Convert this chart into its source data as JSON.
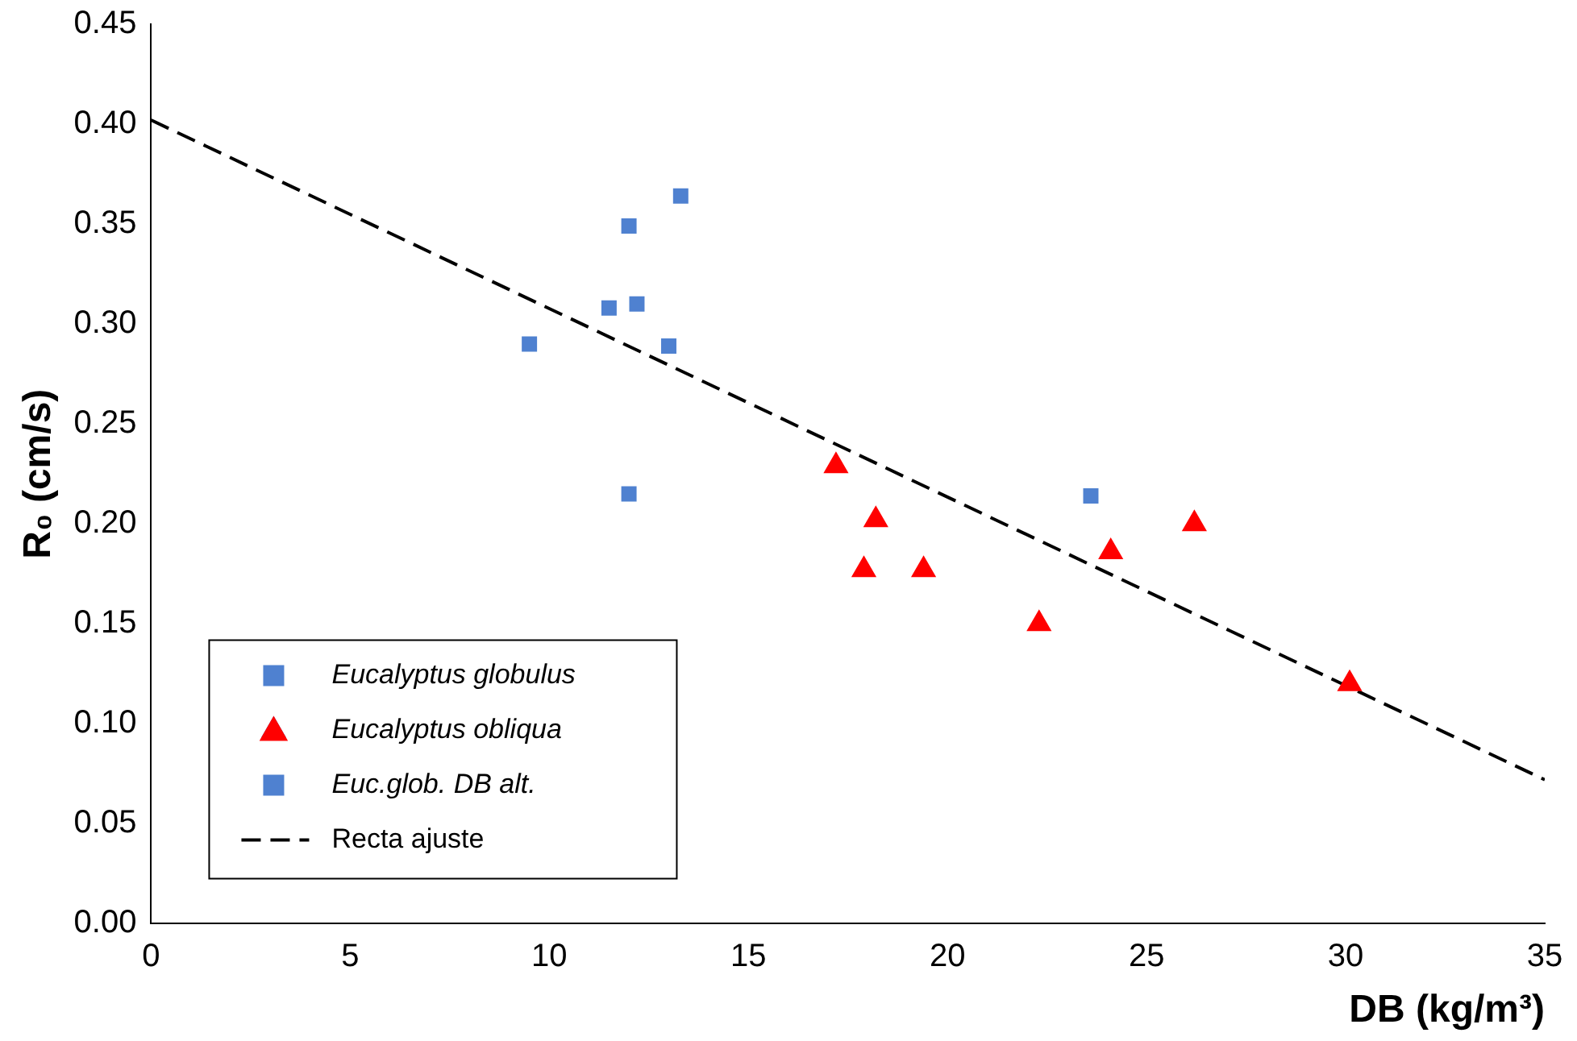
{
  "chart_data": {
    "type": "scatter",
    "xlabel": "DB (kg/m³)",
    "ylabel": "R₀ (cm/s)",
    "xlim": [
      0,
      35
    ],
    "xticks": [
      0,
      5,
      10,
      15,
      20,
      25,
      30,
      35
    ],
    "ylim": [
      0,
      0.45
    ],
    "yticks": [
      {
        "value": 0,
        "label": "0.00"
      },
      {
        "value": 0.05,
        "label": "0.05"
      },
      {
        "value": 0.1,
        "label": "0.10"
      },
      {
        "value": 0.15,
        "label": "0.15"
      },
      {
        "value": 0.2,
        "label": "0.20"
      },
      {
        "value": 0.25,
        "label": "0.25"
      },
      {
        "value": 0.3,
        "label": "0.30"
      },
      {
        "value": 0.35,
        "label": "0.35"
      },
      {
        "value": 0.4,
        "label": "0.40"
      },
      {
        "value": 0.45,
        "label": "0.45"
      }
    ],
    "grid": false,
    "legend": "bottom left",
    "series": [
      {
        "name": "Eucalyptus globulus",
        "color": "#4f81d0",
        "marker": "square",
        "x": [
          9.5,
          11.5,
          12,
          12.2,
          13,
          13.3,
          12
        ],
        "values": [
          0.29,
          0.308,
          0.349,
          0.31,
          0.289,
          0.364,
          0.215
        ]
      },
      {
        "name": "Eucalyptus obliqua",
        "color": "#ff0000",
        "marker": "triangle",
        "x": [
          17.2,
          18.2,
          17.9,
          19.4,
          22.3,
          24.1,
          26.2,
          30.1
        ],
        "values": [
          0.229,
          0.202,
          0.177,
          0.177,
          0.15,
          0.186,
          0.2,
          0.12
        ]
      },
      {
        "name": "Euc.glob. DB alt.",
        "color": "#4f81d0",
        "marker": "square",
        "x": [
          23.6
        ],
        "values": [
          0.214
        ]
      },
      {
        "name": "Recta ajuste",
        "type": "line",
        "color": "#000000",
        "line_style": "dashed",
        "marker": "none",
        "x": [
          0,
          35
        ],
        "values": [
          0.402,
          0.072
        ]
      }
    ]
  }
}
